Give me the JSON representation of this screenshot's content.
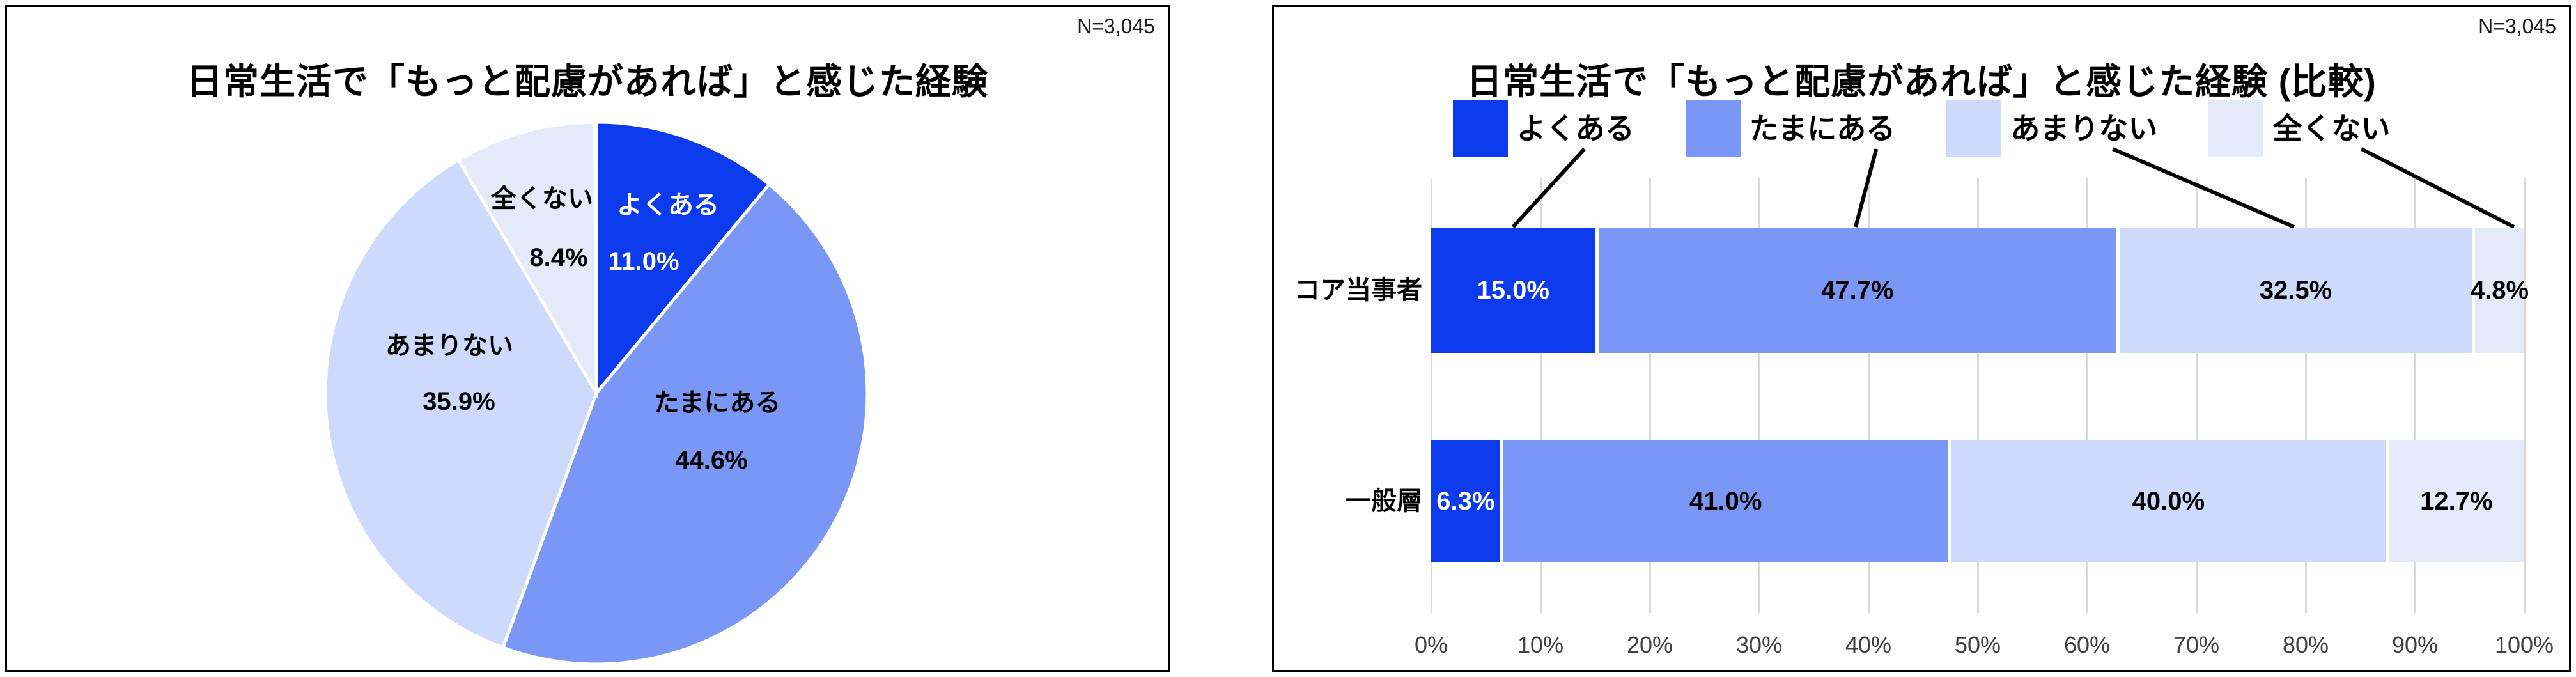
{
  "colors": {
    "series": [
      "#0B3BEC",
      "#7B97F5",
      "#CDDAFB",
      "#E4EAF9"
    ],
    "label_on_dark": "#FFFFFF",
    "label_on_light": "#000000",
    "gridline": "#D9D9D9",
    "axis_text": "#404040",
    "callout_line": "#000000"
  },
  "chart_data": [
    {
      "type": "pie",
      "title": "日常生活で「もっと配慮があれば」と感じた経験",
      "n_label": "N=3,045",
      "categories": [
        "よくある",
        "たまにある",
        "あまりない",
        "全くない"
      ],
      "values": [
        11.0,
        44.6,
        35.9,
        8.4
      ],
      "value_labels": [
        "11.0%",
        "44.6%",
        "35.9%",
        "8.4%"
      ],
      "colors": [
        "#0B3BEC",
        "#7B97F5",
        "#CDDAFB",
        "#E4EAF9"
      ],
      "label_text_colors": [
        "#FFFFFF",
        "#000000",
        "#000000",
        "#000000"
      ],
      "start_angle_deg": 0,
      "direction": "clockwise",
      "legend_position": "none"
    },
    {
      "type": "bar",
      "subtype": "horizontal-stacked-100",
      "title": "日常生活で「もっと配慮があれば」と感じた経験 (比較)",
      "n_label": "N=3,045",
      "categories": [
        "コア当事者",
        "一般層"
      ],
      "series": [
        {
          "name": "よくある",
          "color": "#0B3BEC",
          "values": [
            15.0,
            6.3
          ]
        },
        {
          "name": "たまにある",
          "color": "#7B97F5",
          "values": [
            47.7,
            41.0
          ]
        },
        {
          "name": "あまりない",
          "color": "#CDDAFB",
          "values": [
            32.5,
            40.0
          ]
        },
        {
          "name": "全くない",
          "color": "#E4EAF9",
          "values": [
            4.8,
            12.7
          ]
        }
      ],
      "value_labels": [
        [
          "15.0%",
          "47.7%",
          "32.5%",
          "4.8%"
        ],
        [
          "6.3%",
          "41.0%",
          "40.0%",
          "12.7%"
        ]
      ],
      "x_ticks": [
        "0%",
        "10%",
        "20%",
        "30%",
        "40%",
        "50%",
        "60%",
        "70%",
        "80%",
        "90%",
        "100%"
      ],
      "xlim": [
        0,
        100
      ],
      "grid": true,
      "legend_position": "top"
    }
  ]
}
